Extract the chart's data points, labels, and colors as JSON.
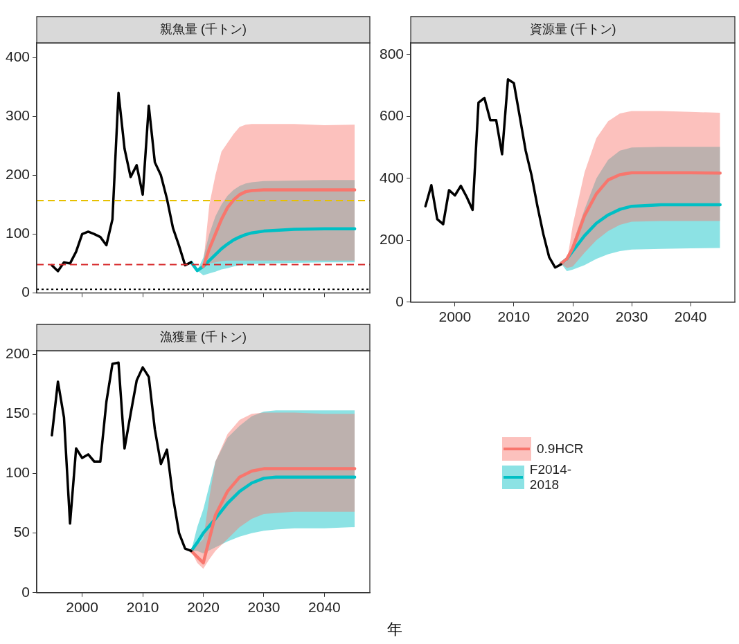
{
  "chart_data": [
    {
      "type": "line",
      "title": "親魚量 (千トン)",
      "xlim": [
        1992.5,
        2047.5
      ],
      "ylim": [
        0,
        425
      ],
      "yticks": [
        0,
        100,
        200,
        300,
        400
      ],
      "xticks": [
        2000,
        2010,
        2020,
        2030,
        2040
      ],
      "tick_labels": "y",
      "grid": false,
      "legend": false,
      "marker": "none",
      "ref_lines": [
        {
          "axis": "y",
          "value": 157,
          "color": "#e6c000",
          "line_style": "dashed"
        },
        {
          "axis": "y",
          "value": 48,
          "color": "#d62728",
          "line_style": "dashed"
        },
        {
          "axis": "y",
          "value": 6,
          "color": "#000000",
          "line_style": "dotted"
        }
      ],
      "series": [
        {
          "color": "#000000",
          "x": [
            1995,
            1996,
            1997,
            1998,
            1999,
            2000,
            2001,
            2002,
            2003,
            2004,
            2005,
            2006,
            2007,
            2008,
            2009,
            2010,
            2011,
            2012,
            2013,
            2014,
            2015,
            2016,
            2017,
            2018
          ],
          "values": [
            47,
            37,
            52,
            50,
            70,
            100,
            104,
            100,
            95,
            81,
            125,
            340,
            245,
            197,
            217,
            167,
            318,
            222,
            200,
            160,
            110,
            80,
            47,
            52
          ]
        },
        {
          "color": "#f8766d",
          "x": [
            2020,
            2021,
            2022,
            2023,
            2024,
            2025,
            2026,
            2027,
            2028,
            2030,
            2035,
            2040,
            2045
          ],
          "values": [
            45,
            75,
            100,
            125,
            145,
            158,
            167,
            172,
            174,
            175,
            175,
            175,
            175
          ],
          "lower": [
            45,
            50,
            52,
            54,
            55,
            55,
            55,
            55,
            55,
            55,
            55,
            55,
            55
          ],
          "upper": [
            50,
            150,
            200,
            240,
            255,
            270,
            282,
            286,
            287,
            287,
            287,
            285,
            286
          ]
        },
        {
          "color": "#00bfc4",
          "x": [
            2018,
            2019,
            2020,
            2021,
            2022,
            2023,
            2024,
            2025,
            2026,
            2027,
            2028,
            2030,
            2035,
            2040,
            2045
          ],
          "values": [
            52,
            38,
            45,
            55,
            65,
            75,
            83,
            90,
            95,
            99,
            102,
            105,
            108,
            109,
            109
          ],
          "lower": [
            52,
            38,
            30,
            33,
            36,
            40,
            42,
            45,
            47,
            48,
            49,
            50,
            51,
            52,
            52
          ],
          "upper": [
            52,
            38,
            60,
            100,
            130,
            150,
            165,
            175,
            182,
            186,
            188,
            190,
            191,
            192,
            192
          ]
        }
      ]
    },
    {
      "type": "line",
      "title": "資源量 (千トン)",
      "xlim": [
        1992.5,
        2047.5
      ],
      "ylim": [
        0,
        838
      ],
      "yticks": [
        0,
        200,
        400,
        600,
        800
      ],
      "xticks": [
        2000,
        2010,
        2020,
        2030,
        2040
      ],
      "grid": false,
      "legend": false,
      "marker": "none",
      "series": [
        {
          "color": "#000000",
          "x": [
            1995,
            1996,
            1997,
            1998,
            1999,
            2000,
            2001,
            2002,
            2003,
            2004,
            2005,
            2006,
            2007,
            2008,
            2009,
            2010,
            2011,
            2012,
            2013,
            2014,
            2015,
            2016,
            2017,
            2018
          ],
          "values": [
            310,
            378,
            268,
            252,
            362,
            345,
            376,
            340,
            298,
            645,
            660,
            588,
            588,
            478,
            720,
            708,
            600,
            490,
            410,
            310,
            220,
            145,
            112,
            122
          ]
        },
        {
          "color": "#f8766d",
          "x": [
            2018,
            2019,
            2020,
            2022,
            2024,
            2026,
            2028,
            2030,
            2035,
            2040,
            2045
          ],
          "values": [
            125,
            140,
            175,
            280,
            350,
            395,
            412,
            418,
            418,
            418,
            417
          ],
          "lower": [
            125,
            110,
            115,
            160,
            200,
            230,
            250,
            260,
            262,
            262,
            262
          ],
          "upper": [
            125,
            130,
            250,
            420,
            530,
            585,
            610,
            618,
            618,
            615,
            612
          ]
        },
        {
          "color": "#00bfc4",
          "x": [
            2018,
            2019,
            2020,
            2022,
            2024,
            2026,
            2028,
            2030,
            2035,
            2040,
            2045
          ],
          "values": [
            125,
            140,
            165,
            215,
            255,
            282,
            300,
            310,
            315,
            315,
            315
          ],
          "lower": [
            125,
            100,
            105,
            120,
            140,
            155,
            165,
            170,
            172,
            174,
            175
          ],
          "upper": [
            125,
            140,
            190,
            300,
            400,
            460,
            490,
            500,
            502,
            502,
            502
          ]
        }
      ]
    },
    {
      "type": "line",
      "title": "漁獲量 (千トン)",
      "xlabel": "年",
      "xlim": [
        1992.5,
        2047.5
      ],
      "ylim": [
        0,
        203
      ],
      "yticks": [
        0,
        50,
        100,
        150,
        200
      ],
      "xticks": [
        2000,
        2010,
        2020,
        2030,
        2040
      ],
      "grid": false,
      "legend": "right",
      "marker": "none",
      "series": [
        {
          "color": "#000000",
          "x": [
            1995,
            1996,
            1997,
            1998,
            1999,
            2000,
            2001,
            2002,
            2003,
            2004,
            2005,
            2006,
            2007,
            2008,
            2009,
            2010,
            2011,
            2012,
            2013,
            2014,
            2015,
            2016,
            2017,
            2018
          ],
          "values": [
            132,
            177,
            147,
            58,
            121,
            113,
            116,
            110,
            110,
            160,
            192,
            193,
            121,
            150,
            178,
            189,
            181,
            137,
            108,
            120,
            80,
            50,
            37,
            35
          ]
        },
        {
          "name": "0.9HCR",
          "color": "#f8766d",
          "x": [
            2018,
            2019,
            2020,
            2021,
            2022,
            2024,
            2026,
            2028,
            2030,
            2035,
            2040,
            2045
          ],
          "values": [
            35,
            30,
            25,
            45,
            65,
            85,
            97,
            102,
            104,
            104,
            104,
            104
          ],
          "lower": [
            35,
            25,
            20,
            28,
            35,
            45,
            55,
            62,
            66,
            68,
            68,
            68
          ],
          "upper": [
            35,
            40,
            45,
            80,
            110,
            133,
            145,
            150,
            151,
            151,
            150,
            150
          ]
        },
        {
          "name": "F2014-2018",
          "color": "#00bfc4",
          "x": [
            2018,
            2019,
            2020,
            2022,
            2024,
            2026,
            2028,
            2030,
            2032,
            2035,
            2040,
            2045
          ],
          "values": [
            35,
            42,
            50,
            62,
            75,
            85,
            92,
            96,
            97,
            97,
            97,
            97
          ],
          "lower": [
            35,
            35,
            33,
            38,
            43,
            47,
            50,
            52,
            53,
            54,
            54,
            55
          ],
          "upper": [
            35,
            55,
            70,
            110,
            130,
            140,
            148,
            152,
            153,
            153,
            153,
            153
          ]
        }
      ]
    }
  ]
}
